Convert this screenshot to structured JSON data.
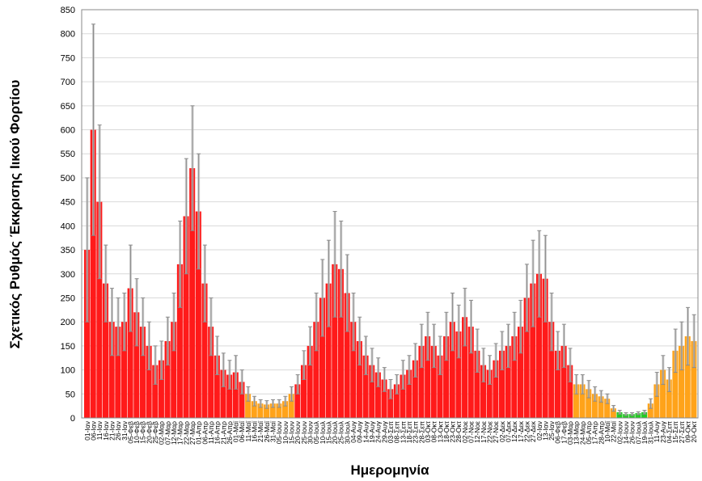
{
  "chart_data": {
    "type": "bar",
    "title": "",
    "xlabel": "Ημερομηνία",
    "ylabel": "Σχετικός Ρυθμός Έκκρισης Ιικού Φορτίου",
    "ylim": [
      0,
      850
    ],
    "yticks": [
      0,
      50,
      100,
      150,
      200,
      250,
      300,
      350,
      400,
      450,
      500,
      550,
      600,
      650,
      700,
      750,
      800,
      850
    ],
    "grid": true,
    "level_colors": {
      "r": "#ff1a1a",
      "o": "#ffa31a",
      "g": "#22cc22"
    },
    "error_color": "#8c8c8c",
    "categories": [
      "01-Ιαν",
      "06-Ιαν",
      "11-Ιαν",
      "16-Ιαν",
      "21-Ιαν",
      "26-Ιαν",
      "31-Ιαν",
      "05-Φεβ",
      "10-Φεβ",
      "15-Φεβ",
      "20-Φεβ",
      "25-Φεβ",
      "02-Μαρ",
      "07-Μαρ",
      "12-Μαρ",
      "17-Μαρ",
      "22-Μαρ",
      "27-Μαρ",
      "01-Απρ",
      "06-Απρ",
      "11-Απρ",
      "16-Απρ",
      "21-Απρ",
      "26-Απρ",
      "01-Μαϊ",
      "06-Μαϊ",
      "11-Μαϊ",
      "16-Μαϊ",
      "21-Μαϊ",
      "26-Μαϊ",
      "31-Μαϊ",
      "05-Ιουν",
      "10-Ιουν",
      "15-Ιουν",
      "20-Ιουν",
      "25-Ιουν",
      "30-Ιουν",
      "05-Ιουλ",
      "10-Ιουλ",
      "15-Ιουλ",
      "20-Ιουλ",
      "25-Ιουλ",
      "30-Ιουλ",
      "04-Αυγ",
      "09-Αυγ",
      "14-Αυγ",
      "19-Αυγ",
      "24-Αυγ",
      "29-Αυγ",
      "03-Σεπ",
      "08-Σεπ",
      "13-Σεπ",
      "18-Σεπ",
      "23-Σεπ",
      "28-Σεπ",
      "03-Οκτ",
      "08-Οκτ",
      "13-Οκτ",
      "18-Οκτ",
      "23-Οκτ",
      "28-Οκτ",
      "02-Νοε",
      "07-Νοε",
      "12-Νοε",
      "17-Νοε",
      "22-Νοε",
      "27-Νοε",
      "02-Δεκ",
      "07-Δεκ",
      "12-Δεκ",
      "17-Δεκ",
      "22-Δεκ",
      "27-Δεκ",
      "02-Ιαν",
      "13-Ιαν",
      "25-Ιαν",
      "06-Φεβ",
      "17-Φεβ",
      "03-Μαρ",
      "13-Μαρ",
      "24-Μαρ",
      "05-Απρ",
      "17-Απρ",
      "28-Απρ",
      "10-Μαϊ",
      "22-Μαϊ",
      "02-Ιουν",
      "14-Ιουν",
      "26-Ιουν",
      "07-Ιουλ",
      "19-Ιουλ",
      "31-Ιουλ",
      "11-Αυγ",
      "23-Αυγ",
      "04-Σεπ",
      "15-Σεπ",
      "27-Σεπ",
      "09-Οκτ",
      "20-Οκτ"
    ],
    "values": [
      350,
      600,
      450,
      280,
      200,
      190,
      200,
      270,
      220,
      190,
      150,
      110,
      120,
      160,
      200,
      320,
      420,
      520,
      430,
      280,
      190,
      130,
      100,
      90,
      95,
      75,
      50,
      35,
      30,
      28,
      30,
      30,
      35,
      50,
      70,
      110,
      150,
      200,
      250,
      280,
      320,
      310,
      260,
      200,
      160,
      130,
      110,
      95,
      80,
      60,
      70,
      90,
      100,
      120,
      150,
      170,
      150,
      130,
      170,
      200,
      180,
      210,
      190,
      140,
      110,
      100,
      120,
      140,
      150,
      170,
      190,
      250,
      280,
      300,
      290,
      200,
      140,
      150,
      110,
      70,
      70,
      60,
      50,
      45,
      40,
      20,
      12,
      8,
      8,
      10,
      12,
      30,
      70,
      100,
      80,
      140,
      150,
      170,
      160
    ],
    "errors": [
      150,
      220,
      160,
      80,
      70,
      60,
      60,
      90,
      70,
      60,
      50,
      40,
      40,
      50,
      60,
      90,
      120,
      130,
      120,
      80,
      60,
      40,
      35,
      30,
      35,
      25,
      15,
      10,
      8,
      8,
      8,
      8,
      10,
      15,
      20,
      30,
      40,
      60,
      80,
      90,
      110,
      100,
      80,
      60,
      50,
      40,
      35,
      30,
      25,
      20,
      20,
      30,
      30,
      35,
      45,
      50,
      45,
      40,
      50,
      60,
      55,
      60,
      55,
      45,
      35,
      30,
      35,
      40,
      45,
      50,
      55,
      70,
      90,
      90,
      90,
      60,
      40,
      45,
      35,
      20,
      20,
      18,
      15,
      12,
      10,
      6,
      4,
      3,
      3,
      3,
      4,
      10,
      25,
      30,
      25,
      45,
      50,
      60,
      55
    ],
    "levels": [
      "r",
      "r",
      "r",
      "r",
      "r",
      "r",
      "r",
      "r",
      "r",
      "r",
      "r",
      "r",
      "r",
      "r",
      "r",
      "r",
      "r",
      "r",
      "r",
      "r",
      "r",
      "r",
      "r",
      "r",
      "r",
      "r",
      "o",
      "o",
      "o",
      "o",
      "o",
      "o",
      "o",
      "o",
      "r",
      "r",
      "r",
      "r",
      "r",
      "r",
      "r",
      "r",
      "r",
      "r",
      "r",
      "r",
      "r",
      "r",
      "r",
      "r",
      "r",
      "r",
      "r",
      "r",
      "r",
      "r",
      "r",
      "r",
      "r",
      "r",
      "r",
      "r",
      "r",
      "r",
      "r",
      "r",
      "r",
      "r",
      "r",
      "r",
      "r",
      "r",
      "r",
      "r",
      "r",
      "r",
      "r",
      "r",
      "r",
      "o",
      "o",
      "o",
      "o",
      "o",
      "o",
      "o",
      "g",
      "g",
      "g",
      "g",
      "g",
      "o",
      "o",
      "o",
      "o",
      "o",
      "o",
      "o",
      "o"
    ]
  }
}
